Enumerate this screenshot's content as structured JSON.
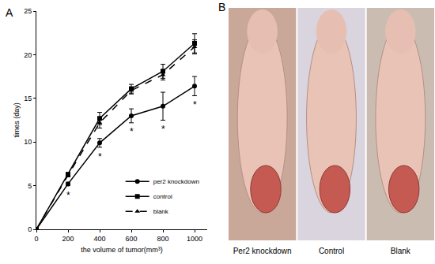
{
  "chart_data": {
    "type": "line",
    "panel_label": "A",
    "x_label": "the volume of tumor(mm³)",
    "y_label": "times (day)",
    "x": [
      0,
      200,
      400,
      600,
      800,
      1000
    ],
    "series": [
      {
        "name": "per2 knockdown",
        "color": "#000000",
        "marker": "circle",
        "line_style": "solid",
        "values": [
          0,
          5.2,
          9.9,
          13.0,
          14.1,
          16.4
        ],
        "errors": [
          0,
          0.2,
          0.5,
          0.8,
          1.6,
          1.1
        ]
      },
      {
        "name": "control",
        "color": "#000000",
        "marker": "square",
        "line_style": "solid",
        "values": [
          0,
          6.3,
          12.7,
          16.1,
          18.1,
          21.3
        ],
        "errors": [
          0,
          0.2,
          0.7,
          0.5,
          0.8,
          1.1
        ]
      },
      {
        "name": "blank",
        "color": "#000000",
        "marker": "triangle-up",
        "line_style": "dash",
        "values": [
          0,
          6.2,
          12.2,
          15.9,
          17.7,
          20.9
        ],
        "errors": [
          0,
          0.2,
          0.6,
          0.4,
          0.6,
          0.8
        ]
      }
    ],
    "annotations": [
      {
        "x": 200,
        "y": 3.9,
        "text": "*"
      },
      {
        "x": 400,
        "y": 8.3,
        "text": "*"
      },
      {
        "x": 600,
        "y": 11.2,
        "text": "*"
      },
      {
        "x": 800,
        "y": 11.5,
        "text": "*"
      },
      {
        "x": 1000,
        "y": 14.3,
        "text": "*"
      }
    ],
    "xlim": [
      0,
      1080
    ],
    "xticks": [
      0,
      200,
      400,
      600,
      800,
      1000
    ],
    "ylim": [
      0,
      25
    ],
    "yticks": [
      0,
      5,
      10,
      15,
      20,
      25
    ],
    "grid": false,
    "legend": "lower right"
  },
  "photo_panel": {
    "panel_label": "B",
    "labels": [
      "Per2 knockdown",
      "Control",
      "Blank"
    ]
  }
}
